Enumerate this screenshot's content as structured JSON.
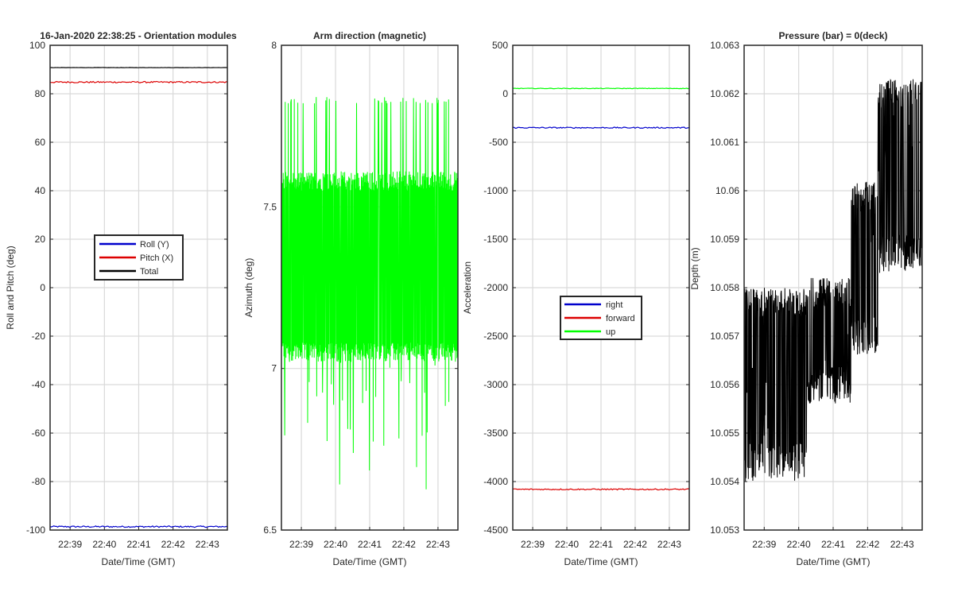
{
  "figure_title": "16-Jan-2020 22:38:25 - Orientation modules",
  "chart_data": [
    {
      "type": "line",
      "title": "16-Jan-2020 22:38:25 - Orientation modules",
      "xlabel": "Date/Time (GMT)",
      "ylabel": "Roll and Pitch (deg)",
      "xticks": [
        "22:39",
        "22:40",
        "22:41",
        "22:42",
        "22:43"
      ],
      "yticks": [
        "100",
        "80",
        "60",
        "40",
        "20",
        "0",
        "-20",
        "-40",
        "-60",
        "-80",
        "-100"
      ],
      "ylim": [
        -100,
        100
      ],
      "grid": true,
      "legend": "center",
      "series": [
        {
          "name": "Roll (Y)",
          "color": "#0000cc",
          "level": -98.6,
          "noise": 0.3
        },
        {
          "name": "Pitch (X)",
          "color": "#dd0000",
          "level": 84.8,
          "noise": 0.3
        },
        {
          "name": "Total",
          "color": "#000000",
          "level": 90.8,
          "noise": 0.05
        }
      ]
    },
    {
      "type": "line",
      "title": "Arm direction (magnetic)",
      "xlabel": "Date/Time (GMT)",
      "ylabel": "Azimuth (deg)",
      "xticks": [
        "22:39",
        "22:40",
        "22:41",
        "22:42",
        "22:43"
      ],
      "yticks": [
        "8",
        "7.5",
        "7",
        "6.5"
      ],
      "ylim": [
        6.5,
        8
      ],
      "grid": true,
      "series": [
        {
          "name": "azimuth",
          "color": "#00ff00",
          "levels": [
            7.05,
            7.58
          ],
          "spike_high": 7.84,
          "spike_low": 6.6
        }
      ]
    },
    {
      "type": "line",
      "title": "",
      "xlabel": "Date/Time (GMT)",
      "ylabel": "Acceleration",
      "xticks": [
        "22:39",
        "22:40",
        "22:41",
        "22:42",
        "22:43"
      ],
      "yticks": [
        "500",
        "0",
        "-500",
        "-1000",
        "-1500",
        "-2000",
        "-2500",
        "-3000",
        "-3500",
        "-4000",
        "-4500"
      ],
      "ylim": [
        -4500,
        500
      ],
      "grid": true,
      "legend": "center",
      "series": [
        {
          "name": "right",
          "color": "#0000cc",
          "level": -350,
          "noise": 6
        },
        {
          "name": "forward",
          "color": "#dd0000",
          "level": -4080,
          "noise": 6
        },
        {
          "name": "up",
          "color": "#00ff00",
          "level": 55,
          "noise": 3
        }
      ]
    },
    {
      "type": "line",
      "title": "Pressure (bar) = 0(deck)",
      "xlabel": "Date/Time (GMT)",
      "ylabel": "Depth (m)",
      "xticks": [
        "22:39",
        "22:40",
        "22:41",
        "22:42",
        "22:43"
      ],
      "yticks": [
        "10.063",
        "10.062",
        "10.061",
        "10.06",
        "10.059",
        "10.058",
        "10.057",
        "10.056",
        "10.055",
        "10.054",
        "10.053"
      ],
      "ylim": [
        10.053,
        10.063
      ],
      "grid": true,
      "series": [
        {
          "name": "depth",
          "color": "#000000",
          "steps": [
            {
              "x0": 0.0,
              "x1": 0.35,
              "low": 10.054,
              "high": 10.058
            },
            {
              "x0": 0.35,
              "x1": 0.6,
              "low": 10.0556,
              "high": 10.0582
            },
            {
              "x0": 0.6,
              "x1": 0.75,
              "low": 10.0566,
              "high": 10.0602
            },
            {
              "x0": 0.75,
              "x1": 1.0,
              "low": 10.0583,
              "high": 10.0623
            }
          ]
        }
      ]
    }
  ]
}
